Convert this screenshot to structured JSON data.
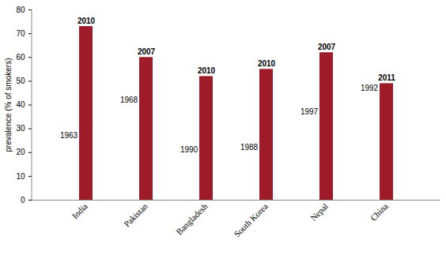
{
  "chart_data": {
    "type": "bar",
    "categories": [
      "India",
      "Pakistan",
      "Bangladesh",
      "South Korea",
      "Nepal",
      "China"
    ],
    "values": [
      73,
      60,
      52,
      55,
      62,
      49
    ],
    "color": "#9e1b2a",
    "y_label": "prevalence (% of smokers)",
    "ylim": [
      0,
      80
    ],
    "yticks": [
      0,
      10,
      20,
      30,
      40,
      50,
      60,
      70,
      80
    ],
    "grid": false,
    "annotations": [
      {
        "text": "2010",
        "x": "India",
        "y": 73
      },
      {
        "text": "1963",
        "x": "India",
        "y": 27
      },
      {
        "text": "2007",
        "x": "Pakistan",
        "y": 60
      },
      {
        "text": "1968",
        "x": "Pakistan",
        "y": 42
      },
      {
        "text": "2010",
        "x": "Bangladesh",
        "y": 52
      },
      {
        "text": "1990",
        "x": "Bangladesh",
        "y": 21
      },
      {
        "text": "2010",
        "x": "South Korea",
        "y": 55
      },
      {
        "text": "1988",
        "x": "South Korea",
        "y": 22
      },
      {
        "text": "2007",
        "x": "Nepal",
        "y": 62
      },
      {
        "text": "1997",
        "x": "Nepal",
        "y": 37
      },
      {
        "text": "2011",
        "x": "China",
        "y": 49
      },
      {
        "text": "1992",
        "x": "China",
        "y": 47
      }
    ]
  }
}
